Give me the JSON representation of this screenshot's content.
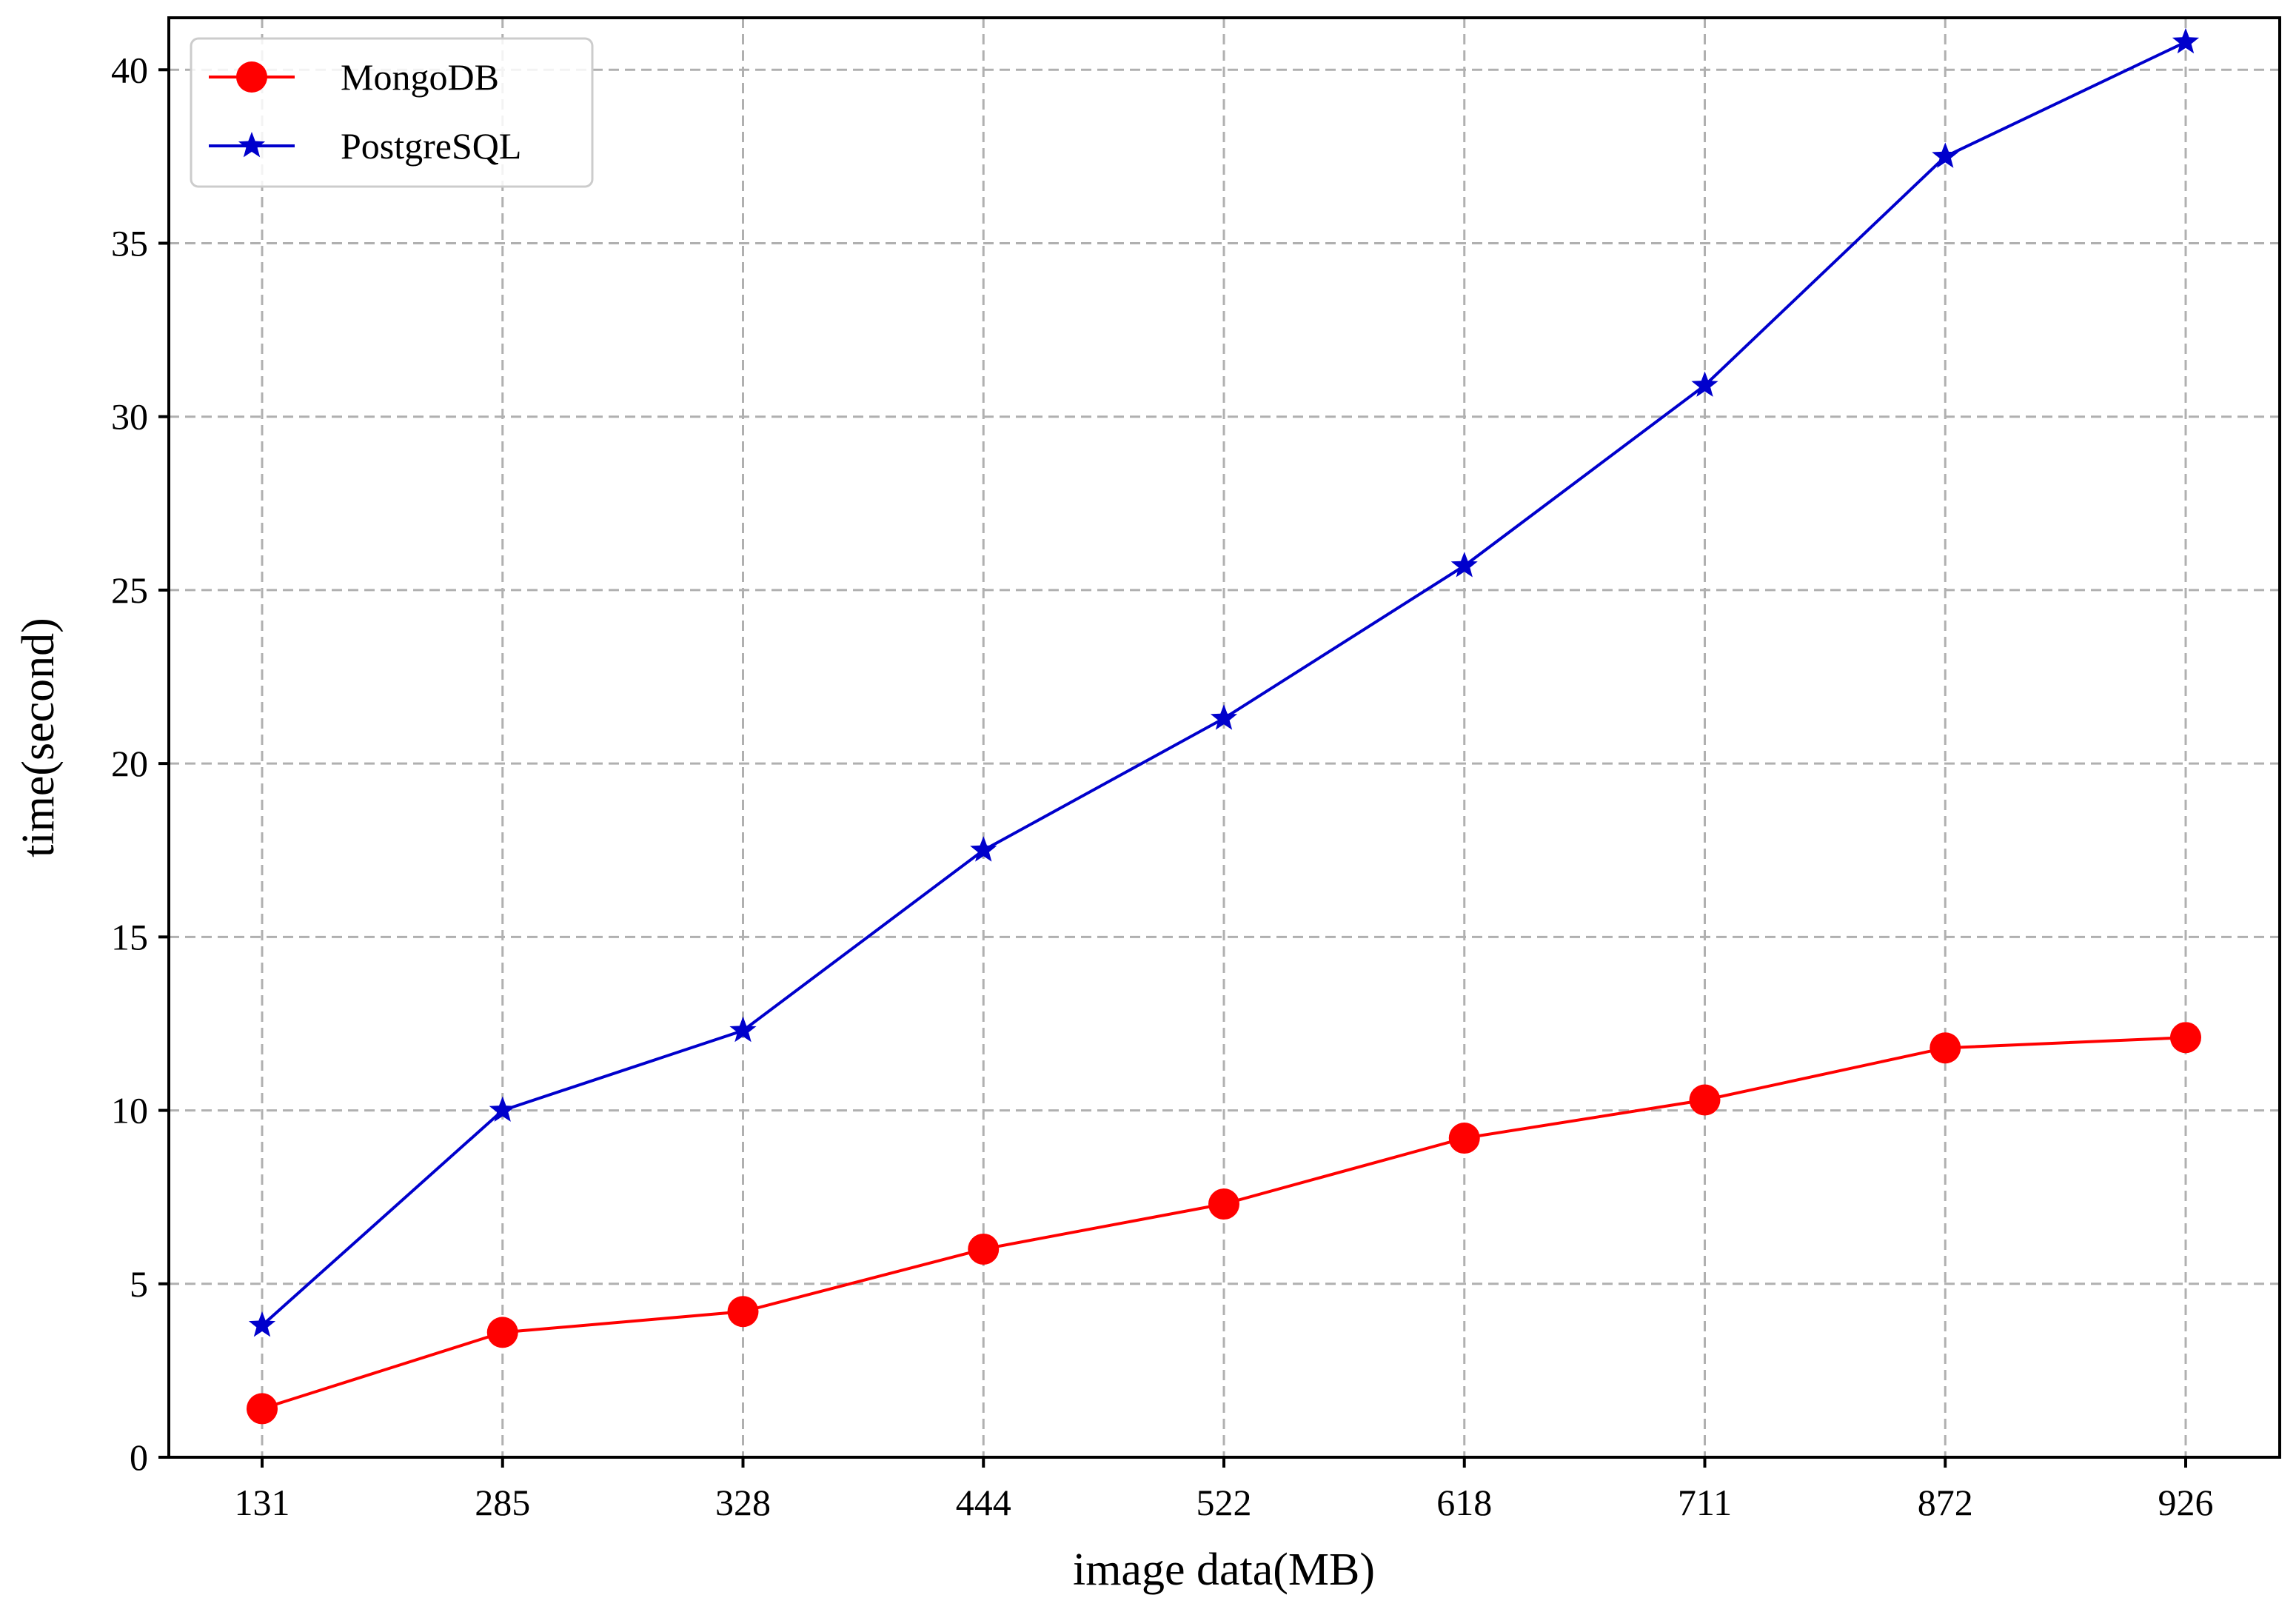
{
  "chart_data": {
    "type": "line",
    "title": "",
    "xlabel": "image data(MB)",
    "ylabel": "time(second)",
    "categories": [
      "131",
      "285",
      "328",
      "444",
      "522",
      "618",
      "711",
      "872",
      "926"
    ],
    "ylim": [
      0,
      41.5
    ],
    "yticks": [
      0,
      5,
      10,
      15,
      20,
      25,
      30,
      35,
      40
    ],
    "grid": true,
    "legend_position": "top-left",
    "series": [
      {
        "name": "MongoDB",
        "color": "#ff0000",
        "marker": "circle",
        "values": [
          1.4,
          3.6,
          4.2,
          6.0,
          7.3,
          9.2,
          10.3,
          11.8,
          12.1
        ]
      },
      {
        "name": "PostgreSQL",
        "color": "#0000cc",
        "marker": "star",
        "values": [
          3.8,
          10.0,
          12.3,
          17.5,
          21.3,
          25.7,
          30.9,
          37.5,
          40.8
        ]
      }
    ]
  }
}
